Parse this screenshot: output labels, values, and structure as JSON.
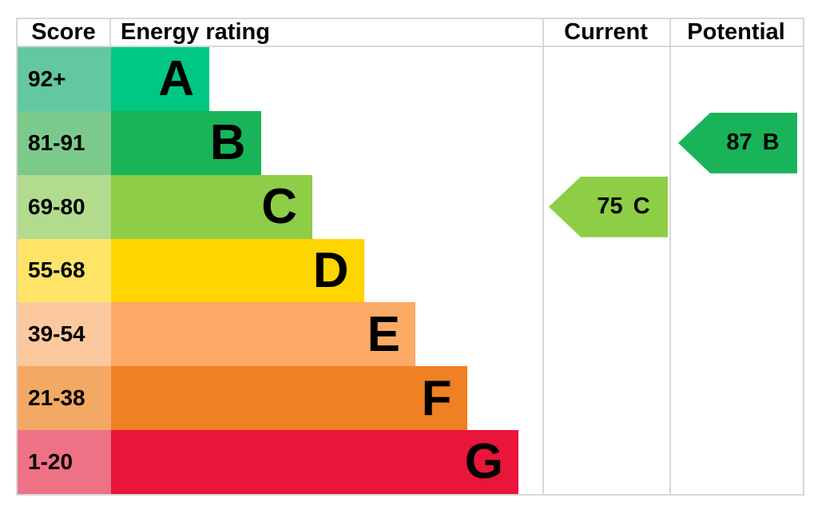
{
  "chart_data": {
    "type": "bar",
    "title": "Energy rating",
    "categories": [
      "A",
      "B",
      "C",
      "D",
      "E",
      "F",
      "G"
    ],
    "score_ranges": [
      "92+",
      "81-91",
      "69-80",
      "55-68",
      "39-54",
      "21-38",
      "1-20"
    ],
    "band_colors": [
      "#00c781",
      "#19b459",
      "#8dce46",
      "#ffd500",
      "#fcaa65",
      "#ef8023",
      "#e9153b"
    ],
    "legend_position": "none",
    "grid": false,
    "current": {
      "score": 75,
      "rating": "C"
    },
    "potential": {
      "score": 87,
      "rating": "B"
    }
  },
  "header": {
    "score": "Score",
    "energy_rating": "Energy rating",
    "current": "Current",
    "potential": "Potential"
  },
  "bands": [
    {
      "score": "92+",
      "letter": "A",
      "bar_color": "#00c781",
      "score_color": "#63c7a1"
    },
    {
      "score": "81-91",
      "letter": "B",
      "bar_color": "#19b459",
      "score_color": "#7cca8b"
    },
    {
      "score": "69-80",
      "letter": "C",
      "bar_color": "#8dce46",
      "score_color": "#b2db8e"
    },
    {
      "score": "55-68",
      "letter": "D",
      "bar_color": "#ffd500",
      "score_color": "#ffe468"
    },
    {
      "score": "39-54",
      "letter": "E",
      "bar_color": "#fcaa65",
      "score_color": "#fbc99d"
    },
    {
      "score": "21-38",
      "letter": "F",
      "bar_color": "#ef8023",
      "score_color": "#f3a963"
    },
    {
      "score": "1-20",
      "letter": "G",
      "bar_color": "#e9153b",
      "score_color": "#ef7186"
    }
  ],
  "current": {
    "value": "75",
    "letter": "C",
    "band_index": 2,
    "color": "#8dce46"
  },
  "potential": {
    "value": "87",
    "letter": "B",
    "band_index": 1,
    "color": "#19b459"
  }
}
